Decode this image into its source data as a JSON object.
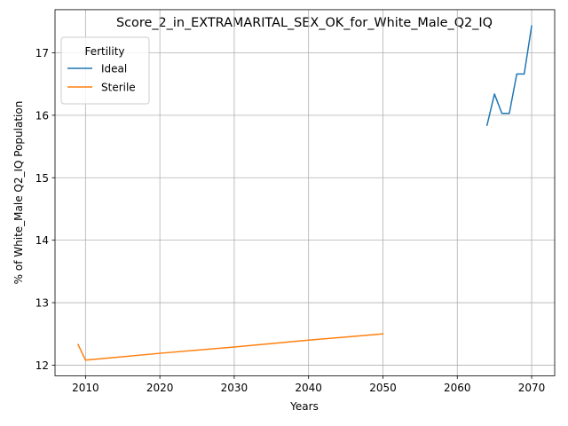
{
  "chart_data": {
    "type": "line",
    "title": "Score_2_in_EXTRAMARITAL_SEX_OK_for_White_Male_Q2_IQ",
    "xlabel": "Years",
    "ylabel": "% of White_Male Q2_IQ Population",
    "xlim": [
      2005.9,
      2073.1
    ],
    "ylim": [
      11.83,
      17.69
    ],
    "x_ticks": [
      2010,
      2020,
      2030,
      2040,
      2050,
      2060,
      2070
    ],
    "y_ticks": [
      12,
      13,
      14,
      15,
      16,
      17
    ],
    "grid": true,
    "legend": {
      "title": "Fertility",
      "placement": "top-left"
    },
    "series": [
      {
        "name": "Ideal",
        "color": "#1f77b4",
        "x": [
          2064,
          2065,
          2066,
          2067,
          2068,
          2069,
          2070
        ],
        "y": [
          15.84,
          16.34,
          16.03,
          16.03,
          16.66,
          16.66,
          17.43
        ]
      },
      {
        "name": "Sterile",
        "color": "#ff7f0e",
        "x": [
          2009,
          2010,
          2020,
          2030,
          2040,
          2050
        ],
        "y": [
          12.33,
          12.08,
          12.19,
          12.29,
          12.4,
          12.5
        ]
      }
    ]
  }
}
